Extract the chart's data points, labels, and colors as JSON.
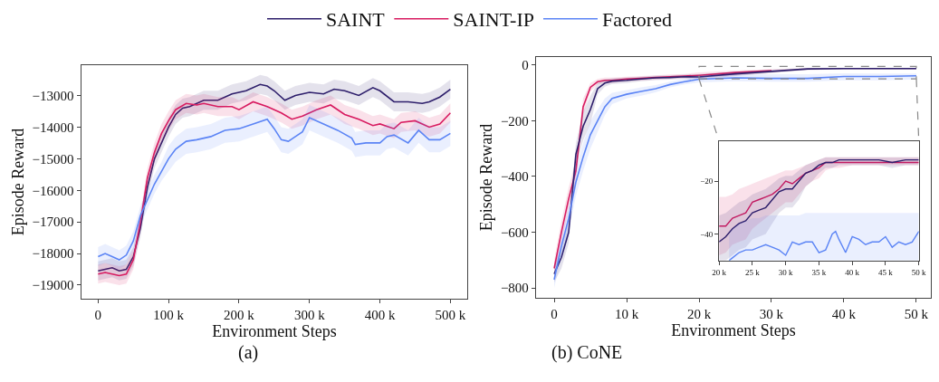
{
  "chart_data": [
    {
      "type": "line",
      "title": "(a)",
      "xlabel": "Environment Steps",
      "ylabel": "Episode Reward",
      "legend": "top",
      "marker": "none",
      "line_style": "solid",
      "xlim": [
        -24000,
        524500
      ],
      "ylim": [
        -19430,
        -12045
      ],
      "xticks": [
        0,
        {
          "value": 100000,
          "label": "100 k"
        },
        {
          "value": 200000,
          "label": "200 k"
        },
        {
          "value": 300000,
          "label": "300 k"
        },
        {
          "value": 400000,
          "label": "400 k"
        },
        {
          "value": 500000,
          "label": "500 k"
        }
      ],
      "yticks": [
        {
          "value": -19000,
          "label": "−19000"
        },
        {
          "value": -18000,
          "label": "−18000"
        },
        {
          "value": -17000,
          "label": "−17000"
        },
        {
          "value": -16000,
          "label": "−16000"
        },
        {
          "value": -15000,
          "label": "−15000"
        },
        {
          "value": -14000,
          "label": "−14000"
        },
        {
          "value": -13000,
          "label": "−13000"
        }
      ],
      "series": [
        {
          "name": "SAINT",
          "color": "#2d1e6b",
          "x": [
            0,
            10000,
            20000,
            30000,
            40000,
            50000,
            60000,
            70000,
            80000,
            90000,
            100000,
            110000,
            120000,
            130000,
            150000,
            170000,
            190000,
            210000,
            230000,
            240000,
            250000,
            265000,
            280000,
            300000,
            320000,
            335000,
            350000,
            370000,
            390000,
            400000,
            420000,
            440000,
            460000,
            470000,
            485000,
            500000
          ],
          "values": [
            -18550,
            -18500,
            -18450,
            -18550,
            -18500,
            -18100,
            -17200,
            -15900,
            -15000,
            -14500,
            -14000,
            -13600,
            -13400,
            -13350,
            -13150,
            -13150,
            -12950,
            -12850,
            -12650,
            -12700,
            -12850,
            -13150,
            -13000,
            -12900,
            -12950,
            -12800,
            -12850,
            -13000,
            -12750,
            -12850,
            -13200,
            -13200,
            -13250,
            -13200,
            -13050,
            -12800
          ],
          "upper": [
            -18250,
            -18200,
            -18150,
            -18250,
            -18200,
            -17800,
            -16900,
            -15600,
            -14700,
            -14200,
            -13700,
            -13300,
            -13100,
            -13050,
            -12850,
            -12850,
            -12650,
            -12550,
            -12350,
            -12400,
            -12550,
            -12850,
            -12700,
            -12600,
            -12650,
            -12500,
            -12550,
            -12700,
            -12450,
            -12550,
            -12900,
            -12900,
            -12950,
            -12900,
            -12750,
            -12500
          ],
          "lower": [
            -18850,
            -18800,
            -18750,
            -18850,
            -18800,
            -18400,
            -17500,
            -16200,
            -15300,
            -14800,
            -14300,
            -13900,
            -13700,
            -13650,
            -13450,
            -13450,
            -13250,
            -13150,
            -12950,
            -13000,
            -13150,
            -13450,
            -13300,
            -13200,
            -13250,
            -13100,
            -13150,
            -13300,
            -13050,
            -13150,
            -13500,
            -13500,
            -13550,
            -13500,
            -13350,
            -13100
          ]
        },
        {
          "name": "SAINT-IP",
          "color": "#d81b60",
          "x": [
            0,
            10000,
            20000,
            30000,
            40000,
            50000,
            60000,
            70000,
            80000,
            90000,
            100000,
            110000,
            125000,
            140000,
            150000,
            170000,
            190000,
            200000,
            220000,
            240000,
            260000,
            275000,
            290000,
            310000,
            330000,
            350000,
            370000,
            390000,
            400000,
            420000,
            430000,
            450000,
            470000,
            485000,
            500000
          ],
          "values": [
            -18650,
            -18600,
            -18650,
            -18700,
            -18650,
            -18200,
            -17000,
            -15600,
            -14800,
            -14200,
            -13800,
            -13450,
            -13250,
            -13300,
            -13250,
            -13350,
            -13350,
            -13450,
            -13200,
            -13350,
            -13550,
            -13750,
            -13650,
            -13450,
            -13300,
            -13600,
            -13750,
            -13950,
            -13900,
            -14050,
            -13850,
            -13800,
            -14000,
            -13900,
            -13550
          ],
          "upper": [
            -18350,
            -18300,
            -18350,
            -18400,
            -18350,
            -17900,
            -16700,
            -15300,
            -14500,
            -13900,
            -13500,
            -13150,
            -12950,
            -13000,
            -12950,
            -13050,
            -13050,
            -13150,
            -12900,
            -13050,
            -13250,
            -13450,
            -13350,
            -13150,
            -13000,
            -13300,
            -13450,
            -13650,
            -13600,
            -13750,
            -13550,
            -13500,
            -13700,
            -13600,
            -13250
          ],
          "lower": [
            -18950,
            -18900,
            -18950,
            -19000,
            -18950,
            -18500,
            -17300,
            -15900,
            -15100,
            -14500,
            -14100,
            -13750,
            -13550,
            -13600,
            -13550,
            -13650,
            -13650,
            -13750,
            -13500,
            -13650,
            -13850,
            -14050,
            -13950,
            -13750,
            -13600,
            -13900,
            -14050,
            -14250,
            -14200,
            -14350,
            -14150,
            -14100,
            -14300,
            -14200,
            -13850
          ]
        },
        {
          "name": "Factored",
          "color": "#5b84f5",
          "x": [
            0,
            10000,
            20000,
            30000,
            40000,
            50000,
            60000,
            70000,
            80000,
            90000,
            100000,
            110000,
            125000,
            140000,
            160000,
            180000,
            200000,
            220000,
            240000,
            250000,
            260000,
            270000,
            280000,
            290000,
            300000,
            320000,
            340000,
            360000,
            365000,
            380000,
            400000,
            410000,
            420000,
            440000,
            455000,
            470000,
            485000,
            500000
          ],
          "values": [
            -18100,
            -18000,
            -18100,
            -18200,
            -18050,
            -17600,
            -16800,
            -16300,
            -15800,
            -15400,
            -15000,
            -14700,
            -14450,
            -14400,
            -14300,
            -14100,
            -14050,
            -13900,
            -13750,
            -14050,
            -14400,
            -14450,
            -14300,
            -14150,
            -13700,
            -13900,
            -14100,
            -14350,
            -14550,
            -14500,
            -14500,
            -14300,
            -14250,
            -14500,
            -14100,
            -14400,
            -14400,
            -14200
          ],
          "upper": [
            -17800,
            -17700,
            -17800,
            -17900,
            -17750,
            -17300,
            -16500,
            -16000,
            -15500,
            -15100,
            -14600,
            -14300,
            -14050,
            -14000,
            -13900,
            -13700,
            -13650,
            -13500,
            -13350,
            -13650,
            -14000,
            -14050,
            -13900,
            -13750,
            -13300,
            -13500,
            -13700,
            -13950,
            -14150,
            -14100,
            -14100,
            -13900,
            -13850,
            -14100,
            -13700,
            -14000,
            -14000,
            -13800
          ],
          "lower": [
            -18400,
            -18300,
            -18400,
            -18500,
            -18350,
            -17900,
            -17100,
            -16600,
            -16100,
            -15700,
            -15400,
            -15100,
            -14850,
            -14800,
            -14700,
            -14500,
            -14450,
            -14300,
            -14150,
            -14450,
            -14800,
            -14850,
            -14700,
            -14550,
            -14100,
            -14300,
            -14500,
            -14750,
            -14950,
            -14900,
            -14900,
            -14700,
            -14650,
            -14900,
            -14500,
            -14800,
            -14800,
            -14600
          ]
        }
      ]
    },
    {
      "type": "line",
      "title": "(b) CoNE",
      "xlabel": "Environment Steps",
      "ylabel": "Episode Reward",
      "marker": "none",
      "line_style": "solid",
      "xlim": [
        -2500,
        52000
      ],
      "ylim": [
        -836,
        29
      ],
      "xticks": [
        0,
        {
          "value": 10000,
          "label": "10 k"
        },
        {
          "value": 20000,
          "label": "20 k"
        },
        {
          "value": 30000,
          "label": "30 k"
        },
        {
          "value": 40000,
          "label": "40 k"
        },
        {
          "value": 50000,
          "label": "50 k"
        }
      ],
      "yticks": [
        {
          "value": -800,
          "label": "−800"
        },
        {
          "value": -600,
          "label": "−600"
        },
        {
          "value": -400,
          "label": "−400"
        },
        {
          "value": -200,
          "label": "−200"
        },
        0
      ],
      "series": [
        {
          "color": "#2d1e6b",
          "x": [
            0,
            1000,
            2000,
            3000,
            4000,
            5000,
            6000,
            7000,
            8000,
            10000,
            12000,
            14000,
            16000,
            18000,
            20000,
            25000,
            30000,
            35000,
            40000,
            45000,
            50000
          ],
          "values": [
            -750,
            -690,
            -600,
            -320,
            -220,
            -160,
            -85,
            -65,
            -58,
            -55,
            -50,
            -46,
            -45,
            -42,
            -43,
            -32,
            -23,
            -14,
            -13,
            -13,
            -13
          ],
          "upper": [
            -720,
            -650,
            -560,
            -280,
            -170,
            -110,
            -65,
            -52,
            -48,
            -45,
            -42,
            -38,
            -37,
            -34,
            -33,
            -24,
            -17,
            -11,
            -10,
            -10,
            -10
          ],
          "lower": [
            -780,
            -730,
            -640,
            -360,
            -270,
            -210,
            -105,
            -78,
            -68,
            -65,
            -58,
            -54,
            -53,
            -50,
            -53,
            -40,
            -29,
            -18,
            -16,
            -16,
            -16
          ]
        },
        {
          "color": "#d81b60",
          "x": [
            0,
            1000,
            2000,
            3000,
            4000,
            5000,
            6000,
            7000,
            8000,
            10000,
            12000,
            14000,
            16000,
            18000,
            20000,
            25000,
            30000,
            35000,
            40000,
            45000,
            50000
          ],
          "values": [
            -730,
            -600,
            -480,
            -380,
            -150,
            -80,
            -60,
            -55,
            -55,
            -50,
            -48,
            -45,
            -42,
            -40,
            -37,
            -27,
            -20,
            null,
            null,
            null,
            null
          ],
          "upper": [
            -700,
            -560,
            -440,
            -340,
            -120,
            -65,
            -50,
            -45,
            -45,
            -42,
            -40,
            -37,
            -34,
            -32,
            -27,
            -20,
            -15,
            -11,
            -10,
            -10,
            -10
          ],
          "lower": [
            -760,
            -640,
            -520,
            -420,
            -180,
            -95,
            -70,
            -65,
            -65,
            -58,
            -56,
            -53,
            -50,
            -48,
            -47,
            -37,
            -27,
            -18,
            -16,
            -16,
            -16
          ]
        },
        {
          "color": "#5b84f5",
          "x": [
            0,
            1000,
            2000,
            3000,
            4000,
            5000,
            6000,
            7000,
            8000,
            10000,
            12000,
            14000,
            16000,
            18000,
            20000,
            25000,
            30000,
            35000,
            40000,
            45000,
            50000
          ],
          "values": [
            -770,
            -650,
            -550,
            -420,
            -330,
            -250,
            -200,
            -150,
            -120,
            -105,
            -95,
            -85,
            -70,
            -60,
            -51,
            -46,
            -48,
            -48,
            -41,
            -41,
            -39
          ],
          "upper": [
            -740,
            -610,
            -500,
            -370,
            -280,
            -200,
            -160,
            -120,
            -100,
            -90,
            -80,
            -72,
            -60,
            -50,
            -40,
            -35,
            -33,
            -33,
            -30,
            -31,
            -31
          ],
          "lower": [
            -800,
            -690,
            -600,
            -470,
            -380,
            -300,
            -240,
            -180,
            -140,
            -120,
            -110,
            -98,
            -80,
            -70,
            -62,
            -58,
            -60,
            -60,
            -55,
            -55,
            -52
          ]
        }
      ]
    },
    {
      "type": "line",
      "marker": "none",
      "line_style": "solid",
      "xlim": [
        20000,
        50000
      ],
      "ylim": [
        -50,
        -5
      ],
      "xticks": [
        {
          "value": 20000,
          "label": "20 k"
        },
        {
          "value": 25000,
          "label": "25 k"
        },
        {
          "value": 30000,
          "label": "30 k"
        },
        {
          "value": 35000,
          "label": "35 k"
        },
        {
          "value": 40000,
          "label": "40 k"
        },
        {
          "value": 45000,
          "label": "45 k"
        },
        {
          "value": 50000,
          "label": "50 k"
        }
      ],
      "yticks": [
        {
          "value": -40,
          "label": "−40"
        },
        {
          "value": -20,
          "label": "−20"
        }
      ],
      "series": [
        {
          "color": "#2d1e6b",
          "x": [
            20000,
            21000,
            22000,
            23000,
            24000,
            25000,
            26000,
            27000,
            28000,
            29000,
            30000,
            31000,
            32000,
            33000,
            34000,
            35000,
            36000,
            37000,
            38000,
            40000,
            42000,
            44000,
            46000,
            48000,
            50000
          ],
          "values": [
            -43,
            -41,
            -38,
            -36,
            -35,
            -32,
            -31,
            -30,
            -27,
            -24,
            -23,
            -23,
            -20,
            -17,
            -16,
            -14,
            -13,
            -13,
            -12,
            -12,
            -12,
            -12,
            -13,
            -12,
            -12
          ],
          "upper": [
            -33,
            -32,
            -30,
            -28,
            -27,
            -25,
            -24,
            -23,
            -21,
            -19,
            -18,
            -18,
            -16,
            -14,
            -13,
            -12,
            -11,
            -11,
            -11,
            -11,
            -11,
            -11,
            -11,
            -11,
            -11
          ],
          "lower": [
            -50,
            -50,
            -48,
            -46,
            -45,
            -42,
            -41,
            -40,
            -36,
            -32,
            -30,
            -30,
            -27,
            -22,
            -20,
            -17,
            -15,
            -15,
            -14,
            -14,
            -14,
            -14,
            -15,
            -14,
            -14
          ]
        },
        {
          "color": "#d81b60",
          "x": [
            20000,
            21000,
            22000,
            23000,
            24000,
            25000,
            26000,
            27000,
            28000,
            29000,
            30000,
            31000,
            32000,
            33000,
            34000,
            35000,
            36000,
            37000,
            38000,
            40000,
            42000,
            44000,
            46000,
            48000,
            50000
          ],
          "values": [
            -37,
            -37,
            -34,
            -33,
            -32,
            -28,
            -27,
            -26,
            -25,
            -23,
            -20,
            -21,
            -19,
            -17,
            -16,
            -15,
            -13,
            -13,
            -13,
            -13,
            -13,
            -13,
            -13,
            -13,
            -13
          ],
          "upper": [
            -26,
            -26,
            -25,
            -23,
            -22,
            -21,
            -20,
            -19,
            -18,
            -17,
            -16,
            -16,
            -15,
            -14,
            -13,
            -12,
            -11,
            -11,
            -11,
            -11,
            -11,
            -11,
            -11,
            -11,
            -11
          ],
          "lower": [
            -48,
            -47,
            -44,
            -43,
            -42,
            -38,
            -36,
            -34,
            -32,
            -30,
            -28,
            -28,
            -25,
            -22,
            -20,
            -19,
            -16,
            -15,
            -15,
            -14,
            -14,
            -14,
            -14,
            -14,
            -14
          ]
        },
        {
          "color": "#5b84f5",
          "x": [
            21500,
            22000,
            23000,
            24000,
            25000,
            26000,
            27000,
            28000,
            29000,
            30000,
            31000,
            32000,
            33000,
            34000,
            35000,
            36000,
            37000,
            37500,
            38000,
            39000,
            40000,
            41000,
            42000,
            43000,
            44000,
            45000,
            46000,
            47000,
            48000,
            49000,
            50000
          ],
          "values": [
            -50,
            -49,
            -47,
            -46,
            -46,
            -45,
            -44,
            -45,
            -46,
            -48,
            -43,
            -44,
            -43,
            -43,
            -47,
            -46,
            -40,
            -39,
            -42,
            -47,
            -41,
            -42,
            -44,
            -43,
            -43,
            -41,
            -45,
            -43,
            -44,
            -43,
            -39
          ],
          "upper": [
            -40,
            -38,
            -36,
            -35,
            -34,
            -34,
            -33,
            -33,
            -33,
            -33,
            -33,
            -33,
            -32,
            -32,
            -32,
            -32,
            -32,
            -32,
            -32,
            -32,
            -32,
            -32,
            -32,
            -32,
            -32,
            -32,
            -32,
            -32,
            -32,
            -32,
            -32
          ],
          "lower": [
            -50,
            -50,
            -50,
            -50,
            -50,
            -50,
            -50,
            -50,
            -50,
            -50,
            -50,
            -50,
            -50,
            -50,
            -50,
            -50,
            -50,
            -50,
            -50,
            -50,
            -50,
            -50,
            -50,
            -50,
            -50,
            -50,
            -50,
            -50,
            -50,
            -50,
            -50
          ]
        }
      ]
    }
  ]
}
